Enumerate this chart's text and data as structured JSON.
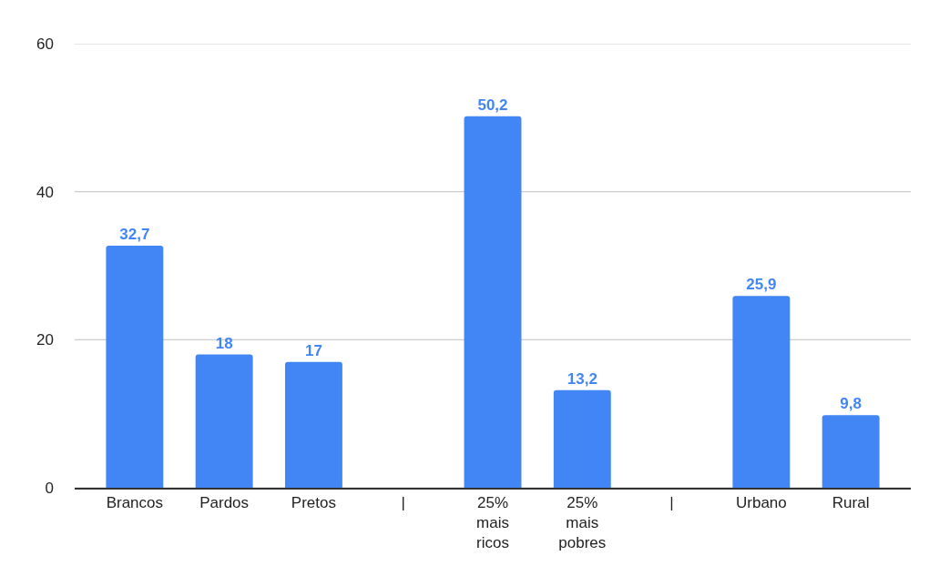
{
  "chart_data": {
    "type": "bar",
    "categories": [
      "Brancos",
      "Pardos",
      "Pretos",
      "|",
      "25% mais ricos",
      "25% mais pobres",
      "|",
      "Urbano",
      "Rural"
    ],
    "values": [
      32.7,
      18,
      17,
      null,
      50.2,
      13.2,
      null,
      25.9,
      9.8
    ],
    "value_labels": [
      "32,7",
      "18",
      "17",
      null,
      "50,2",
      "13,2",
      null,
      "25,9",
      "9,8"
    ],
    "color": "#4285f4",
    "ylim": [
      0,
      60
    ],
    "yticks": [
      0,
      20,
      40,
      60
    ],
    "grid": "y"
  }
}
